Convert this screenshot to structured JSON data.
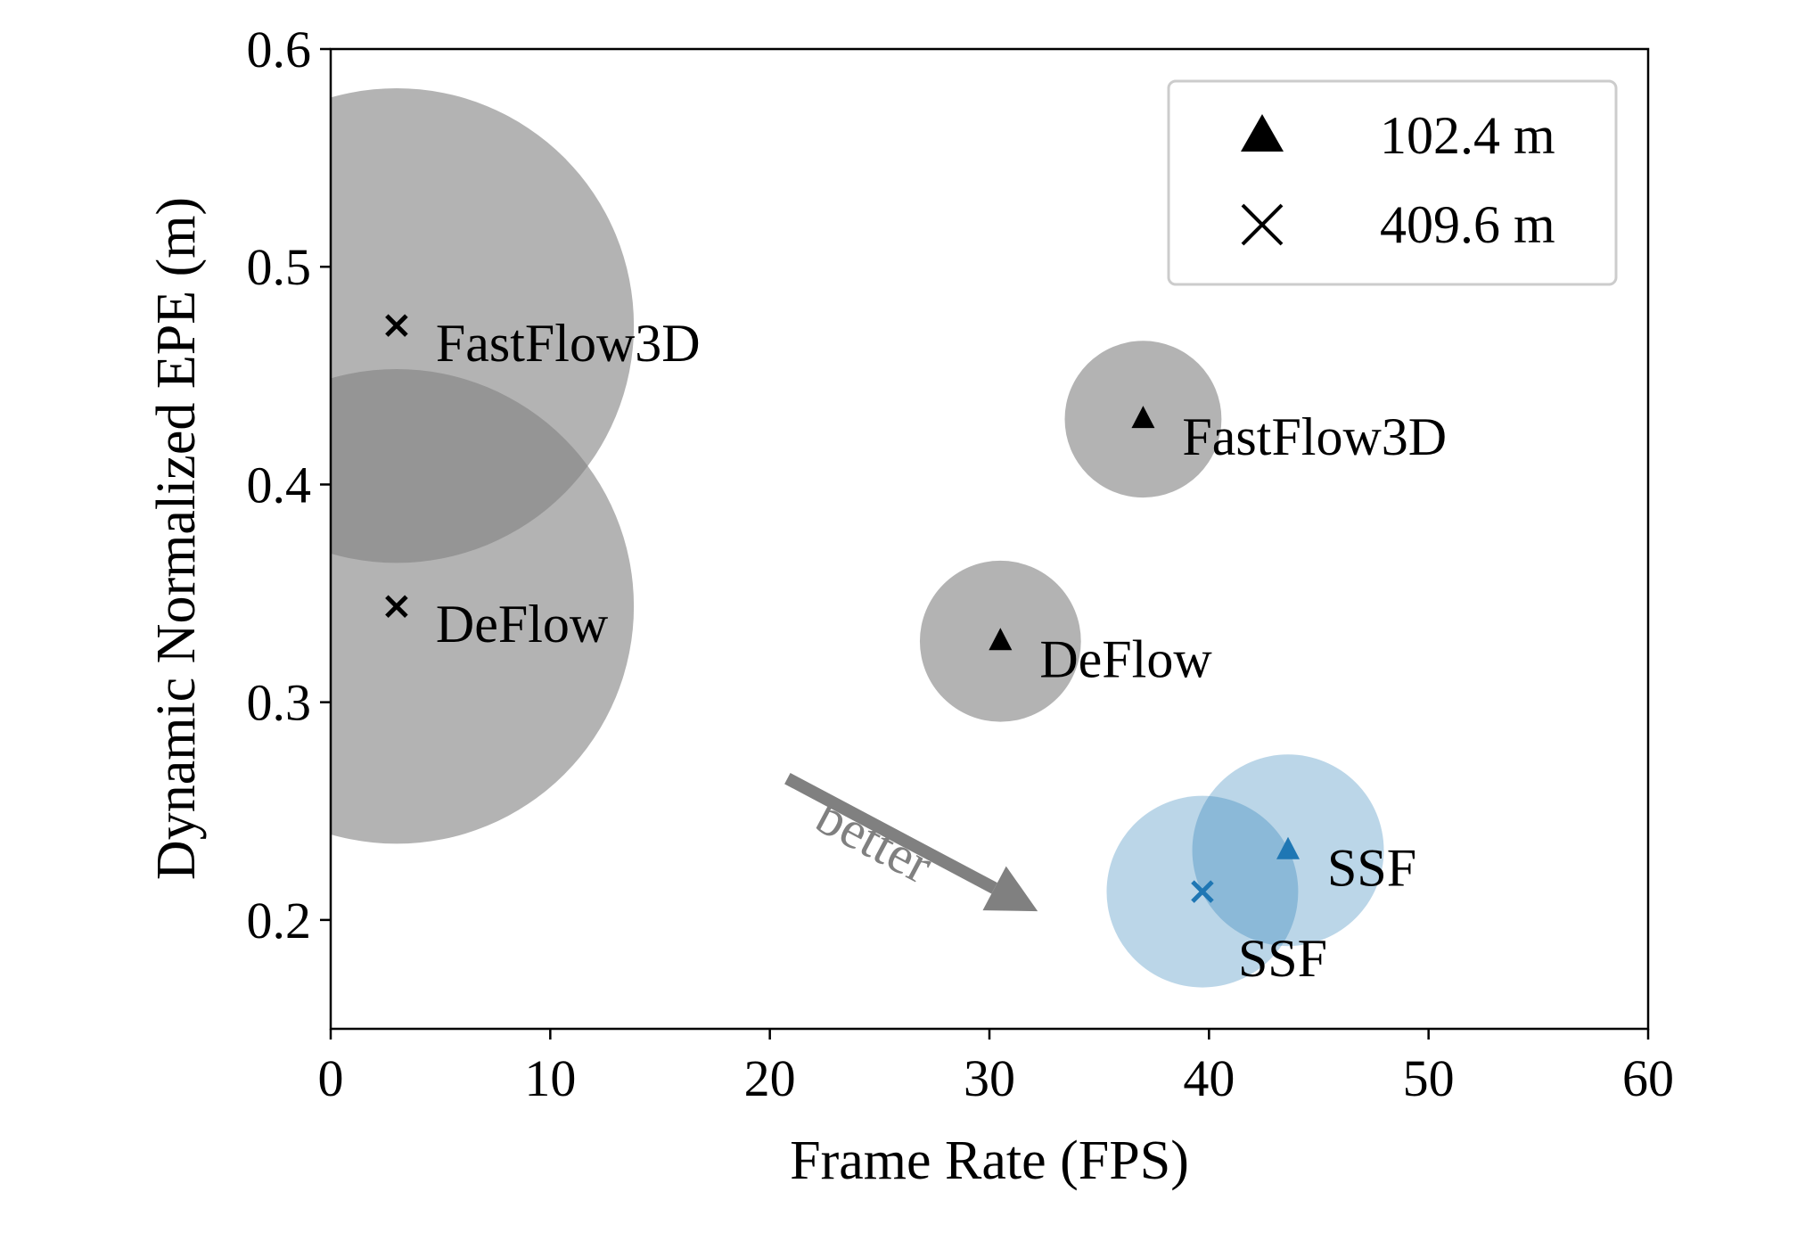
{
  "chart_data": {
    "type": "scatter",
    "title": "",
    "xlabel": "Frame Rate (FPS)",
    "ylabel": "Dynamic Normalized EPE (m)",
    "xlim": [
      0,
      60
    ],
    "ylim": [
      0.15,
      0.6
    ],
    "xticks": [
      "0",
      "10",
      "20",
      "30",
      "40",
      "50",
      "60"
    ],
    "yticks": [
      "0.2",
      "0.3",
      "0.4",
      "0.5",
      "0.6"
    ],
    "grid": false,
    "legend": {
      "placement": "top-right",
      "entries": [
        {
          "marker": "triangle",
          "label": "102.4 m"
        },
        {
          "marker": "x",
          "label": "409.6 m"
        }
      ]
    },
    "points": [
      {
        "method": "FastFlow3D",
        "range": "409.6 m",
        "marker": "x",
        "x": 3.0,
        "y": 0.473,
        "bubble_size": 0.109,
        "color": "#808080",
        "label_pos": "right"
      },
      {
        "method": "DeFlow",
        "range": "409.6 m",
        "marker": "x",
        "x": 3.0,
        "y": 0.344,
        "bubble_size": 0.109,
        "color": "#808080",
        "label_pos": "right"
      },
      {
        "method": "FastFlow3D",
        "range": "102.4 m",
        "marker": "triangle",
        "x": 37.0,
        "y": 0.43,
        "bubble_size": 0.036,
        "color": "#808080",
        "label_pos": "right"
      },
      {
        "method": "DeFlow",
        "range": "102.4 m",
        "marker": "triangle",
        "x": 30.5,
        "y": 0.328,
        "bubble_size": 0.037,
        "color": "#808080",
        "label_pos": "right"
      },
      {
        "method": "SSF",
        "range": "102.4 m",
        "marker": "triangle",
        "x": 43.6,
        "y": 0.232,
        "bubble_size": 0.044,
        "color": "#1f77b4",
        "label_pos": "right"
      },
      {
        "method": "SSF",
        "range": "409.6 m",
        "marker": "x",
        "x": 39.7,
        "y": 0.213,
        "bubble_size": 0.044,
        "color": "#1f77b4",
        "label_pos": "below"
      }
    ],
    "annotation": {
      "text": "better",
      "from": [
        20.8,
        0.265
      ],
      "to": [
        32.2,
        0.204
      ],
      "color": "#808080"
    }
  }
}
